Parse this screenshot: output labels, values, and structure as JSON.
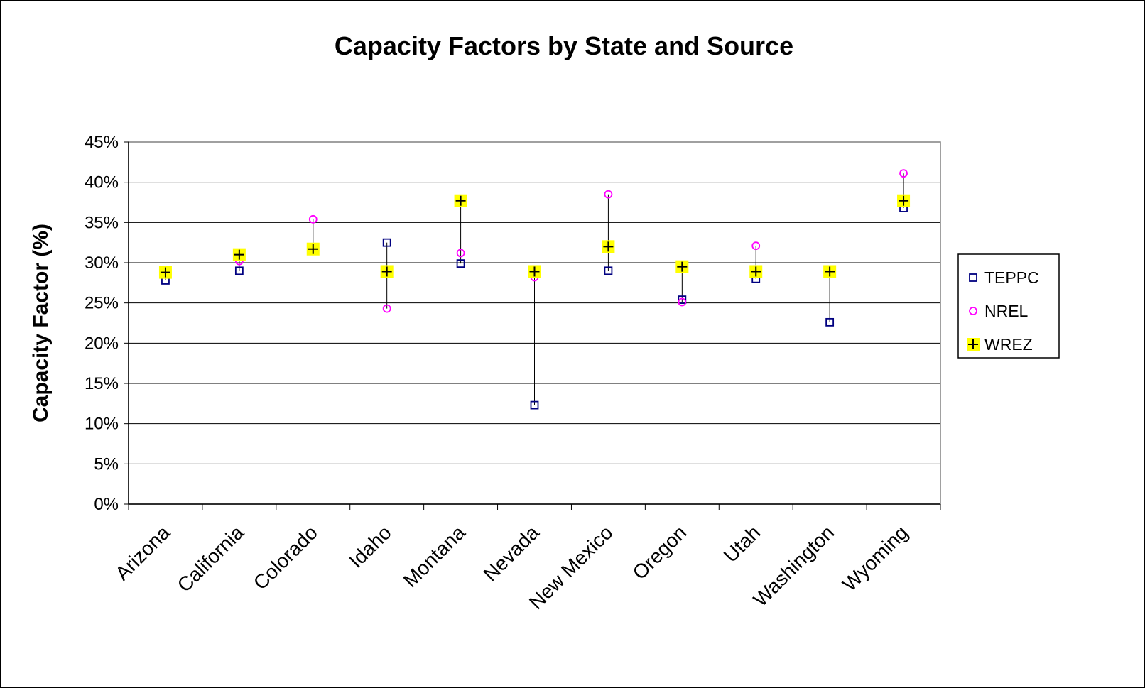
{
  "chart_data": {
    "type": "scatter",
    "title": "Capacity Factors by State and Source",
    "xlabel": "",
    "ylabel": "Capacity Factor (%)",
    "ylim": [
      0,
      45
    ],
    "yticks": [
      "0%",
      "5%",
      "10%",
      "15%",
      "20%",
      "25%",
      "30%",
      "35%",
      "40%",
      "45%"
    ],
    "categories": [
      "Arizona",
      "California",
      "Colorado",
      "Idaho",
      "Montana",
      "Nevada",
      "New Mexico",
      "Oregon",
      "Utah",
      "Washington",
      "Wyoming"
    ],
    "grid": "horizontal",
    "legend_position": "right",
    "series": [
      {
        "name": "TEPPC",
        "marker": "square",
        "color": "#000080",
        "values": [
          27.8,
          29.0,
          null,
          32.5,
          29.9,
          12.3,
          29.0,
          25.4,
          28.0,
          22.6,
          36.8
        ]
      },
      {
        "name": "NREL",
        "marker": "circle",
        "color": "#ff00ff",
        "values": [
          null,
          30.2,
          35.4,
          24.3,
          31.2,
          28.2,
          38.5,
          25.1,
          32.1,
          null,
          41.1
        ]
      },
      {
        "name": "WREZ",
        "marker": "plus",
        "color": "#000000",
        "highlight": "#ffff00",
        "values": [
          28.8,
          31.0,
          31.7,
          28.9,
          37.7,
          28.9,
          32.0,
          29.5,
          28.9,
          28.9,
          37.7
        ]
      }
    ]
  }
}
